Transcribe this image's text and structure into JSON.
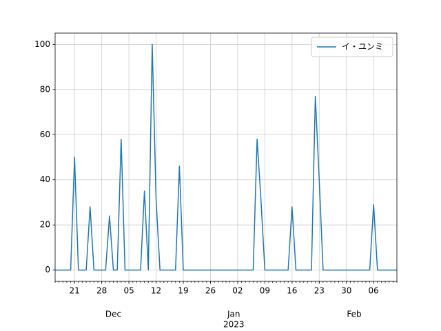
{
  "chart_data": {
    "type": "line",
    "x": [
      "2022-11-16",
      "2022-11-17",
      "2022-11-18",
      "2022-11-19",
      "2022-11-20",
      "2022-11-21",
      "2022-11-22",
      "2022-11-23",
      "2022-11-24",
      "2022-11-25",
      "2022-11-26",
      "2022-11-27",
      "2022-11-28",
      "2022-11-29",
      "2022-11-30",
      "2022-12-01",
      "2022-12-02",
      "2022-12-03",
      "2022-12-04",
      "2022-12-05",
      "2022-12-06",
      "2022-12-07",
      "2022-12-08",
      "2022-12-09",
      "2022-12-10",
      "2022-12-11",
      "2022-12-12",
      "2022-12-13",
      "2022-12-14",
      "2022-12-15",
      "2022-12-16",
      "2022-12-17",
      "2022-12-18",
      "2022-12-19",
      "2022-12-20",
      "2022-12-21",
      "2022-12-22",
      "2022-12-23",
      "2022-12-24",
      "2022-12-25",
      "2022-12-26",
      "2022-12-27",
      "2022-12-28",
      "2022-12-29",
      "2022-12-30",
      "2022-12-31",
      "2023-01-01",
      "2023-01-02",
      "2023-01-03",
      "2023-01-04",
      "2023-01-05",
      "2023-01-06",
      "2023-01-07",
      "2023-01-08",
      "2023-01-09",
      "2023-01-10",
      "2023-01-11",
      "2023-01-12",
      "2023-01-13",
      "2023-01-14",
      "2023-01-15",
      "2023-01-16",
      "2023-01-17",
      "2023-01-18",
      "2023-01-19",
      "2023-01-20",
      "2023-01-21",
      "2023-01-22",
      "2023-01-23",
      "2023-01-24",
      "2023-01-25",
      "2023-01-26",
      "2023-01-27",
      "2023-01-28",
      "2023-01-29",
      "2023-01-30",
      "2023-01-31",
      "2023-02-01",
      "2023-02-02",
      "2023-02-03",
      "2023-02-04",
      "2023-02-05",
      "2023-02-06",
      "2023-02-07",
      "2023-02-08",
      "2023-02-09",
      "2023-02-10",
      "2023-02-11",
      "2023-02-12"
    ],
    "series": [
      {
        "name": "イ・ユンミ",
        "color": "#1f77b4",
        "values": [
          0,
          0,
          0,
          0,
          0,
          50,
          0,
          0,
          0,
          28,
          0,
          0,
          0,
          0,
          24,
          0,
          0,
          58,
          0,
          0,
          0,
          0,
          0,
          35,
          0,
          100,
          31,
          0,
          0,
          0,
          0,
          0,
          46,
          0,
          0,
          0,
          0,
          0,
          0,
          0,
          0,
          0,
          0,
          0,
          0,
          0,
          0,
          0,
          0,
          0,
          0,
          0,
          58,
          31,
          0,
          0,
          0,
          0,
          0,
          0,
          0,
          28,
          0,
          0,
          0,
          0,
          0,
          77,
          40,
          0,
          0,
          0,
          0,
          0,
          0,
          0,
          0,
          0,
          0,
          0,
          0,
          0,
          29,
          0,
          0,
          0,
          0,
          0,
          0
        ]
      }
    ],
    "xlim": [
      "2022-11-16",
      "2023-02-12"
    ],
    "xticks": [
      {
        "value": "2022-11-21",
        "label": "21"
      },
      {
        "value": "2022-11-28",
        "label": "28"
      },
      {
        "value": "2022-12-05",
        "label": "05"
      },
      {
        "value": "2022-12-12",
        "label": "12"
      },
      {
        "value": "2022-12-19",
        "label": "19"
      },
      {
        "value": "2022-12-26",
        "label": "26"
      },
      {
        "value": "2023-01-02",
        "label": "02"
      },
      {
        "value": "2023-01-09",
        "label": "09"
      },
      {
        "value": "2023-01-16",
        "label": "16"
      },
      {
        "value": "2023-01-23",
        "label": "23"
      },
      {
        "value": "2023-01-30",
        "label": "30"
      },
      {
        "value": "2023-02-06",
        "label": "06"
      }
    ],
    "month_labels": [
      {
        "value": "2022-12-01",
        "label": "Dec"
      },
      {
        "value": "2023-01-01",
        "label": "Jan"
      },
      {
        "value": "2023-02-01",
        "label": "Feb"
      }
    ],
    "year_labels": [
      {
        "value": "2023-01-01",
        "label": "2023"
      }
    ],
    "ylim": [
      -5,
      105
    ],
    "yticks": [
      0,
      20,
      40,
      60,
      80,
      100
    ],
    "grid": true,
    "legend": "upper right"
  }
}
